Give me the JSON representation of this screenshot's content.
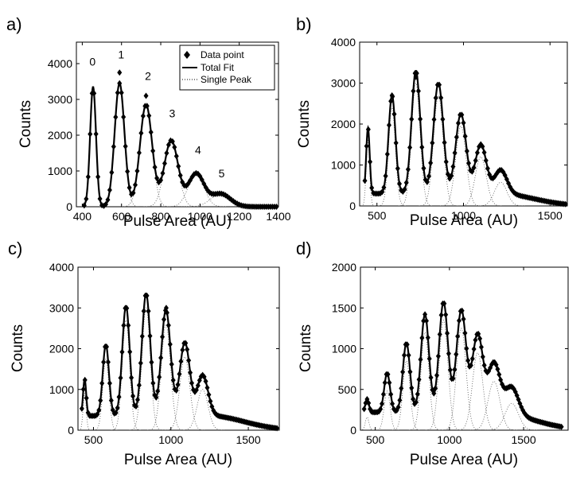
{
  "chart_data": [
    {
      "panel": "a)",
      "type": "line",
      "xlabel": "Pulse Area (AU)",
      "ylabel": "Counts",
      "xlim": [
        370,
        1400
      ],
      "ylim": [
        0,
        4600
      ],
      "xticks": [
        400,
        600,
        800,
        1000,
        1200,
        1400
      ],
      "yticks": [
        0,
        1000,
        2000,
        3000,
        4000
      ],
      "legend": {
        "position": "top-right",
        "entries": [
          "Data point",
          "Total Fit",
          "Single Peak"
        ]
      },
      "peak_labels": [
        {
          "text": "0",
          "x": 452,
          "y": 3950
        },
        {
          "text": "1",
          "x": 598,
          "y": 4150
        },
        {
          "text": "2",
          "x": 735,
          "y": 3550
        },
        {
          "text": "3",
          "x": 858,
          "y": 2500
        },
        {
          "text": "4",
          "x": 990,
          "y": 1480
        },
        {
          "text": "5",
          "x": 1110,
          "y": 820
        }
      ],
      "peaks": [
        {
          "center": 455,
          "height": 3350,
          "sigma": 15
        },
        {
          "center": 590,
          "height": 3450,
          "sigma": 25
        },
        {
          "center": 725,
          "height": 2850,
          "sigma": 31
        },
        {
          "center": 853,
          "height": 1850,
          "sigma": 35
        },
        {
          "center": 980,
          "height": 920,
          "sigma": 40
        },
        {
          "center": 1105,
          "height": 360,
          "sigma": 50
        }
      ],
      "background": {
        "level": 0,
        "center": 1000,
        "sigma": 300
      },
      "data_range": [
        410,
        1395
      ],
      "step": 10,
      "extra_points": [
        {
          "x": 590,
          "y": 3750
        },
        {
          "x": 725,
          "y": 3100
        }
      ]
    },
    {
      "panel": "b)",
      "type": "line",
      "xlabel": "Pulse Area (AU)",
      "ylabel": "Counts",
      "xlim": [
        400,
        1600
      ],
      "ylim": [
        0,
        4000
      ],
      "xticks": [
        500,
        1000,
        1500
      ],
      "yticks": [
        0,
        1000,
        2000,
        3000,
        4000
      ],
      "peaks": [
        {
          "center": 448,
          "height": 1600,
          "sigma": 10
        },
        {
          "center": 587,
          "height": 2400,
          "sigma": 20
        },
        {
          "center": 725,
          "height": 3000,
          "sigma": 25
        },
        {
          "center": 855,
          "height": 2700,
          "sigma": 28
        },
        {
          "center": 985,
          "height": 1950,
          "sigma": 30
        },
        {
          "center": 1100,
          "height": 1200,
          "sigma": 32
        },
        {
          "center": 1215,
          "height": 580,
          "sigma": 36
        }
      ],
      "background": {
        "level": 300,
        "center": 1200,
        "sigma": 200
      },
      "data_range": [
        430,
        1595
      ],
      "step": 10,
      "extra_points": [
        {
          "x": 587,
          "y": 2700
        },
        {
          "x": 725,
          "y": 3150
        }
      ]
    },
    {
      "panel": "c)",
      "type": "line",
      "xlabel": "Pulse Area (AU)",
      "ylabel": "Counts",
      "xlim": [
        400,
        1700
      ],
      "ylim": [
        0,
        4000
      ],
      "xticks": [
        500,
        1000,
        1500
      ],
      "yticks": [
        0,
        1000,
        2000,
        3000,
        4000
      ],
      "peaks": [
        {
          "center": 443,
          "height": 900,
          "sigma": 10
        },
        {
          "center": 580,
          "height": 1750,
          "sigma": 20
        },
        {
          "center": 710,
          "height": 2700,
          "sigma": 24
        },
        {
          "center": 840,
          "height": 3000,
          "sigma": 27
        },
        {
          "center": 968,
          "height": 2600,
          "sigma": 30
        },
        {
          "center": 1090,
          "height": 1800,
          "sigma": 32
        },
        {
          "center": 1205,
          "height": 1000,
          "sigma": 35
        }
      ],
      "background": {
        "level": 350,
        "center": 1250,
        "sigma": 220
      },
      "data_range": [
        425,
        1690
      ],
      "step": 10,
      "extra_points": [
        {
          "x": 970,
          "y": 3000
        }
      ]
    },
    {
      "panel": "d)",
      "type": "line",
      "xlabel": "Pulse Area (AU)",
      "ylabel": "Counts",
      "xlim": [
        400,
        1800
      ],
      "ylim": [
        0,
        2000
      ],
      "xticks": [
        500,
        1000,
        1500
      ],
      "yticks": [
        0,
        500,
        1000,
        1500,
        2000
      ],
      "peaks": [
        {
          "center": 445,
          "height": 160,
          "sigma": 12
        },
        {
          "center": 580,
          "height": 480,
          "sigma": 20
        },
        {
          "center": 710,
          "height": 850,
          "sigma": 24
        },
        {
          "center": 835,
          "height": 1200,
          "sigma": 27
        },
        {
          "center": 960,
          "height": 1350,
          "sigma": 30
        },
        {
          "center": 1080,
          "height": 1250,
          "sigma": 32
        },
        {
          "center": 1190,
          "height": 950,
          "sigma": 35
        },
        {
          "center": 1300,
          "height": 600,
          "sigma": 40
        },
        {
          "center": 1420,
          "height": 330,
          "sigma": 45
        }
      ],
      "background": {
        "level": 220,
        "center": 1300,
        "sigma": 250
      },
      "data_range": [
        425,
        1760
      ],
      "step": 10,
      "extra_points": [
        {
          "x": 705,
          "y": 1050
        }
      ]
    }
  ]
}
